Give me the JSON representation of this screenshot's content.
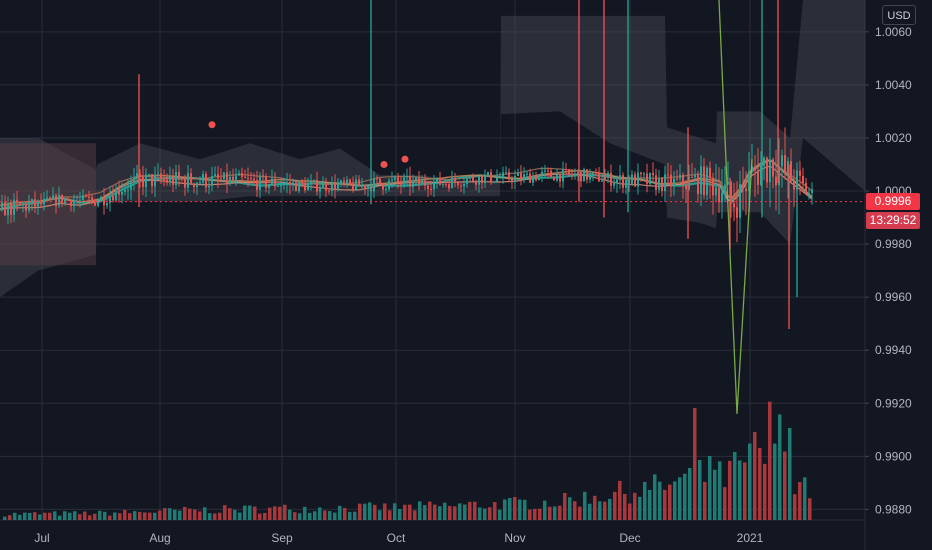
{
  "currency": "USD",
  "last_price_label": "0.9996",
  "countdown_label": "13:29:52",
  "colors": {
    "background": "#131722",
    "grid": "#2a2e39",
    "up": "#26a69a",
    "down": "#ef5350",
    "up_volume": "#1f7b73",
    "down_volume": "#a8383c",
    "text": "#b2b5be",
    "price_tag": "#f23645",
    "cloud": "#4a4c55",
    "cloud_red": "#5a3e44",
    "ma_fast": "#c48a5a",
    "ma_slow": "#26a69a"
  },
  "chart_data": {
    "type": "candlestick",
    "x_tick_labels": [
      "Jul",
      "Aug",
      "Sep",
      "Oct",
      "Nov",
      "Dec",
      "2021"
    ],
    "y_tick_labels": [
      "1.0060",
      "1.0040",
      "1.0020",
      "1.0000",
      "0.9980",
      "0.9960",
      "0.9940",
      "0.9920",
      "0.9900",
      "0.9880"
    ],
    "ylim": [
      0.9876,
      1.0072
    ],
    "last_price": 0.9996,
    "price_profile": [
      [
        0,
        0.9993,
        0.0005
      ],
      [
        20,
        0.9994,
        0.0006
      ],
      [
        40,
        0.9995,
        0.0004
      ],
      [
        60,
        0.9997,
        0.0004
      ],
      [
        80,
        0.9996,
        0.0004
      ],
      [
        100,
        0.9997,
        0.0005
      ],
      [
        120,
        1.0001,
        0.0005
      ],
      [
        140,
        1.0004,
        0.0006
      ],
      [
        160,
        1.0004,
        0.0006
      ],
      [
        180,
        1.0004,
        0.0006
      ],
      [
        200,
        1.0004,
        0.0006
      ],
      [
        220,
        1.0004,
        0.0005
      ],
      [
        240,
        1.0004,
        0.0005
      ],
      [
        260,
        1.0003,
        0.0005
      ],
      [
        280,
        1.0003,
        0.0005
      ],
      [
        300,
        1.0002,
        0.0004
      ],
      [
        320,
        1.0002,
        0.0004
      ],
      [
        340,
        1.0002,
        0.0004
      ],
      [
        360,
        1.0002,
        0.0004
      ],
      [
        380,
        1.0003,
        0.0005
      ],
      [
        400,
        1.0003,
        0.0005
      ],
      [
        420,
        1.0003,
        0.0004
      ],
      [
        440,
        1.0003,
        0.0004
      ],
      [
        460,
        1.0004,
        0.0004
      ],
      [
        480,
        1.0005,
        0.0004
      ],
      [
        500,
        1.0005,
        0.0004
      ],
      [
        520,
        1.0005,
        0.0004
      ],
      [
        540,
        1.0006,
        0.0004
      ],
      [
        560,
        1.0006,
        0.0004
      ],
      [
        580,
        1.0006,
        0.0004
      ],
      [
        600,
        1.0005,
        0.0004
      ],
      [
        620,
        1.0004,
        0.0005
      ],
      [
        640,
        1.0004,
        0.0006
      ],
      [
        660,
        1.0003,
        0.0006
      ],
      [
        680,
        1.0003,
        0.0007
      ],
      [
        700,
        1.0004,
        0.0009
      ],
      [
        720,
        1.0002,
        0.0012
      ],
      [
        730,
        0.9995,
        0.0014
      ],
      [
        740,
        0.9999,
        0.0012
      ],
      [
        750,
        1.0006,
        0.0012
      ],
      [
        760,
        1.0009,
        0.0015
      ],
      [
        770,
        1.0011,
        0.0014
      ],
      [
        780,
        1.0008,
        0.0014
      ],
      [
        790,
        1.0005,
        0.0012
      ],
      [
        800,
        1.0002,
        0.0009
      ],
      [
        812,
        0.9998,
        0.0006
      ]
    ],
    "volume_profile": [
      [
        0,
        0.7
      ],
      [
        100,
        0.8
      ],
      [
        200,
        1.2
      ],
      [
        300,
        1.4
      ],
      [
        400,
        1.5
      ],
      [
        500,
        1.9
      ],
      [
        560,
        2.2
      ],
      [
        600,
        3.0
      ],
      [
        640,
        3.6
      ],
      [
        680,
        4.5
      ],
      [
        700,
        5.2
      ],
      [
        720,
        5.0
      ],
      [
        740,
        6.5
      ],
      [
        760,
        7.5
      ],
      [
        780,
        6.4
      ],
      [
        800,
        4.8
      ],
      [
        812,
        3.0
      ]
    ],
    "volume_peaks": [
      [
        692,
        14.0
      ],
      [
        708,
        8.0
      ],
      [
        752,
        11.0
      ],
      [
        768,
        14.8
      ],
      [
        780,
        13.2
      ],
      [
        790,
        11.5
      ]
    ],
    "big_wicks": [
      [
        139,
        1.0044,
        0.9994
      ],
      [
        371,
        1.0072,
        0.9995
      ],
      [
        579,
        1.0072,
        0.9996
      ],
      [
        604,
        1.0072,
        0.999
      ],
      [
        628,
        1.0072,
        0.9992
      ],
      [
        688,
        1.0024,
        0.9982
      ],
      [
        730,
        1.0005,
        0.9978
      ],
      [
        762,
        1.0072,
        0.999
      ],
      [
        778,
        1.0072,
        1.0003
      ],
      [
        789,
        1.001,
        0.9948
      ],
      [
        797,
        1.0005,
        0.996
      ]
    ],
    "diagonal_line": [
      [
        719,
        1.0072
      ],
      [
        737,
        0.9916
      ],
      [
        752,
        1.0012
      ]
    ],
    "cloud": [
      [
        0,
        1.002,
        0.996
      ],
      [
        38,
        1.002,
        0.997
      ],
      [
        96,
        1.0008,
        0.9976
      ],
      [
        97,
        1.001,
        0.9996
      ],
      [
        140,
        1.0018,
        0.9996
      ],
      [
        200,
        1.0012,
        0.9996
      ],
      [
        250,
        1.0018,
        0.9998
      ],
      [
        300,
        1.0012,
        0.9998
      ],
      [
        340,
        1.0016,
        0.9998
      ],
      [
        380,
        1.0006,
        0.9998
      ],
      [
        420,
        1.0006,
        0.9998
      ],
      [
        460,
        1.0004,
        0.9998
      ],
      [
        500,
        1.0004,
        0.9998
      ],
      [
        501,
        1.0066,
        1.0029
      ],
      [
        560,
        1.0066,
        1.003
      ],
      [
        610,
        1.0066,
        1.0018
      ],
      [
        665,
        1.0066,
        1.001
      ],
      [
        667,
        1.0024,
        0.999
      ],
      [
        700,
        1.002,
        0.9988
      ],
      [
        716,
        1.0018,
        0.9986
      ],
      [
        717,
        1.003,
        0.9992
      ],
      [
        760,
        1.003,
        0.9992
      ],
      [
        790,
        1.002,
        0.998
      ],
      [
        803,
        1.0072,
        1.002
      ],
      [
        865,
        1.0072,
        1.0
      ]
    ],
    "dot_markers": [
      [
        212,
        1.0025
      ],
      [
        384,
        1.001
      ],
      [
        405,
        1.0012
      ]
    ]
  }
}
